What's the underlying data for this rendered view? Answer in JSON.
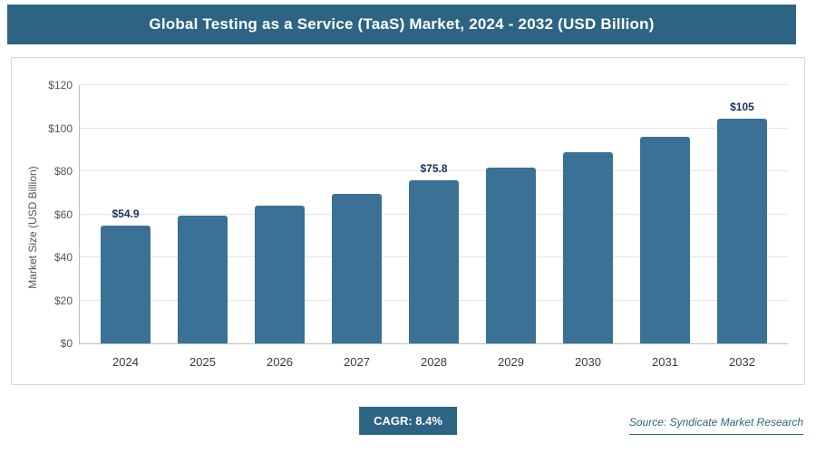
{
  "chart_data": {
    "type": "bar",
    "title": "Global Testing as a Service (TaaS) Market, 2024 - 2032 (USD Billion)",
    "categories": [
      "2024",
      "2025",
      "2026",
      "2027",
      "2028",
      "2029",
      "2030",
      "2031",
      "2032"
    ],
    "values": [
      54.9,
      59.2,
      64.1,
      69.5,
      75.8,
      81.8,
      88.8,
      96.0,
      104.5
    ],
    "value_labels": [
      "$54.9",
      "",
      "",
      "",
      "$75.8",
      "",
      "",
      "",
      "$105"
    ],
    "xlabel": "",
    "ylabel": "Market Size (USD Billion)",
    "ylim": [
      0,
      120
    ],
    "ytick_step": 20,
    "ytick_prefix": "$",
    "grid": true,
    "legend": "none",
    "bar_color": "#3a7195"
  },
  "footer": {
    "cagr_label": "CAGR: 8.4%",
    "source": "Source: Syndicate Market Research"
  }
}
